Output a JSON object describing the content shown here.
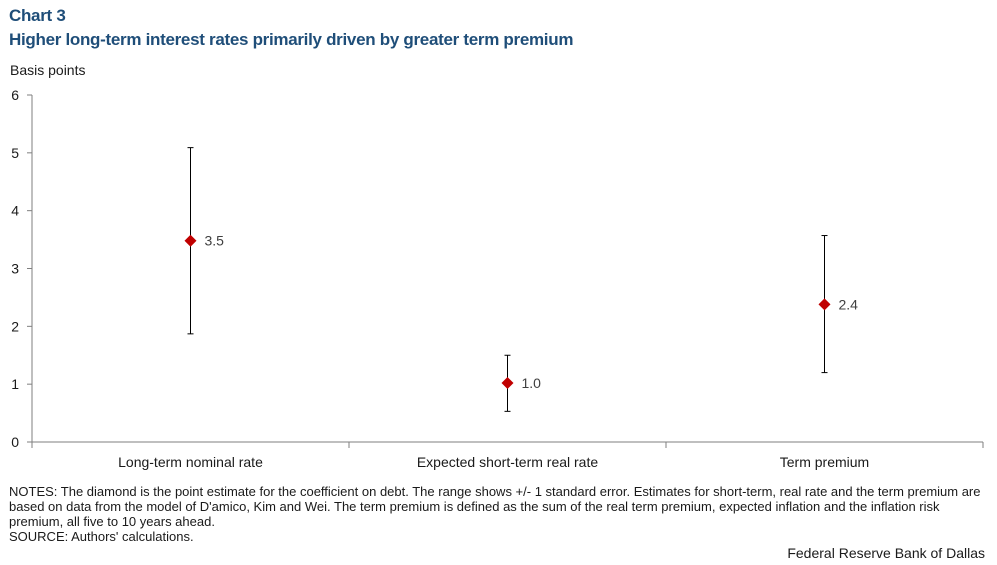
{
  "header": {
    "chart_number": "Chart 3",
    "title": "Higher long-term interest rates primarily driven by greater term premium"
  },
  "chart_data": {
    "type": "scatter",
    "title": "Higher long-term interest rates primarily driven by greater term premium",
    "ylabel": "Basis points",
    "xlabel": "",
    "ylim": [
      0,
      6
    ],
    "yticks": [
      0,
      1,
      2,
      3,
      4,
      5,
      6
    ],
    "categories": [
      "Long-term nominal rate",
      "Expected short-term real rate",
      "Term premium"
    ],
    "values": [
      3.48,
      1.02,
      2.38
    ],
    "data_labels": [
      "3.5",
      "1.0",
      "2.4"
    ],
    "error_low": [
      1.87,
      0.53,
      1.2
    ],
    "error_high": [
      5.09,
      1.5,
      3.57
    ],
    "marker": "diamond",
    "marker_color": "#c00000",
    "grid": false,
    "legend": "none"
  },
  "notes": {
    "notes_text": "NOTES: The diamond is the point estimate for the coefficient on debt. The range shows +/- 1 standard error. Estimates for short-term, real rate and the term premium are based on data from the model of D'amico, Kim and Wei. The term premium is defined as the sum of the real term premium, expected inflation and the inflation risk premium, all five to 10 years ahead.",
    "source_text": "SOURCE: Authors' calculations."
  },
  "footer": {
    "credit": "Federal Reserve Bank of Dallas"
  }
}
